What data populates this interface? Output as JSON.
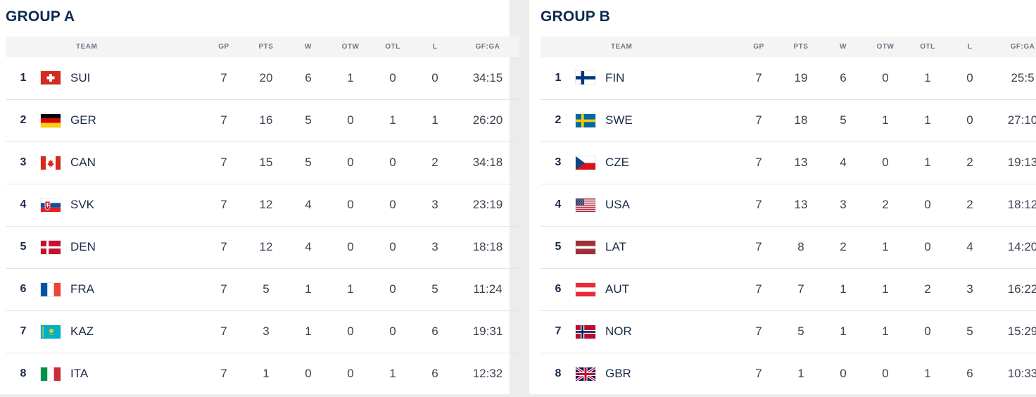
{
  "columns": {
    "team": "TEAM",
    "gp": "GP",
    "pts": "PTS",
    "w": "W",
    "otw": "OTW",
    "otl": "OTL",
    "l": "L",
    "gfga": "GF:GA"
  },
  "groups": [
    {
      "title": "GROUP A",
      "rows": [
        {
          "rank": "1",
          "team": "SUI",
          "flag": "switzerland-flag-icon",
          "gp": "7",
          "pts": "20",
          "w": "6",
          "otw": "1",
          "otl": "0",
          "l": "0",
          "gfga": "34:15"
        },
        {
          "rank": "2",
          "team": "GER",
          "flag": "germany-flag-icon",
          "gp": "7",
          "pts": "16",
          "w": "5",
          "otw": "0",
          "otl": "1",
          "l": "1",
          "gfga": "26:20"
        },
        {
          "rank": "3",
          "team": "CAN",
          "flag": "canada-flag-icon",
          "gp": "7",
          "pts": "15",
          "w": "5",
          "otw": "0",
          "otl": "0",
          "l": "2",
          "gfga": "34:18"
        },
        {
          "rank": "4",
          "team": "SVK",
          "flag": "slovakia-flag-icon",
          "gp": "7",
          "pts": "12",
          "w": "4",
          "otw": "0",
          "otl": "0",
          "l": "3",
          "gfga": "23:19"
        },
        {
          "rank": "5",
          "team": "DEN",
          "flag": "denmark-flag-icon",
          "gp": "7",
          "pts": "12",
          "w": "4",
          "otw": "0",
          "otl": "0",
          "l": "3",
          "gfga": "18:18"
        },
        {
          "rank": "6",
          "team": "FRA",
          "flag": "france-flag-icon",
          "gp": "7",
          "pts": "5",
          "w": "1",
          "otw": "1",
          "otl": "0",
          "l": "5",
          "gfga": "11:24"
        },
        {
          "rank": "7",
          "team": "KAZ",
          "flag": "kazakhstan-flag-icon",
          "gp": "7",
          "pts": "3",
          "w": "1",
          "otw": "0",
          "otl": "0",
          "l": "6",
          "gfga": "19:31"
        },
        {
          "rank": "8",
          "team": "ITA",
          "flag": "italy-flag-icon",
          "gp": "7",
          "pts": "1",
          "w": "0",
          "otw": "0",
          "otl": "1",
          "l": "6",
          "gfga": "12:32"
        }
      ]
    },
    {
      "title": "GROUP B",
      "rows": [
        {
          "rank": "1",
          "team": "FIN",
          "flag": "finland-flag-icon",
          "gp": "7",
          "pts": "19",
          "w": "6",
          "otw": "0",
          "otl": "1",
          "l": "0",
          "gfga": "25:5"
        },
        {
          "rank": "2",
          "team": "SWE",
          "flag": "sweden-flag-icon",
          "gp": "7",
          "pts": "18",
          "w": "5",
          "otw": "1",
          "otl": "1",
          "l": "0",
          "gfga": "27:10"
        },
        {
          "rank": "3",
          "team": "CZE",
          "flag": "czechia-flag-icon",
          "gp": "7",
          "pts": "13",
          "w": "4",
          "otw": "0",
          "otl": "1",
          "l": "2",
          "gfga": "19:13"
        },
        {
          "rank": "4",
          "team": "USA",
          "flag": "usa-flag-icon",
          "gp": "7",
          "pts": "13",
          "w": "3",
          "otw": "2",
          "otl": "0",
          "l": "2",
          "gfga": "18:12"
        },
        {
          "rank": "5",
          "team": "LAT",
          "flag": "latvia-flag-icon",
          "gp": "7",
          "pts": "8",
          "w": "2",
          "otw": "1",
          "otl": "0",
          "l": "4",
          "gfga": "14:20"
        },
        {
          "rank": "6",
          "team": "AUT",
          "flag": "austria-flag-icon",
          "gp": "7",
          "pts": "7",
          "w": "1",
          "otw": "1",
          "otl": "2",
          "l": "3",
          "gfga": "16:22"
        },
        {
          "rank": "7",
          "team": "NOR",
          "flag": "norway-flag-icon",
          "gp": "7",
          "pts": "5",
          "w": "1",
          "otw": "1",
          "otl": "0",
          "l": "5",
          "gfga": "15:29"
        },
        {
          "rank": "8",
          "team": "GBR",
          "flag": "great-britain-flag-icon",
          "gp": "7",
          "pts": "1",
          "w": "0",
          "otw": "0",
          "otl": "1",
          "l": "6",
          "gfga": "10:33"
        }
      ]
    }
  ]
}
